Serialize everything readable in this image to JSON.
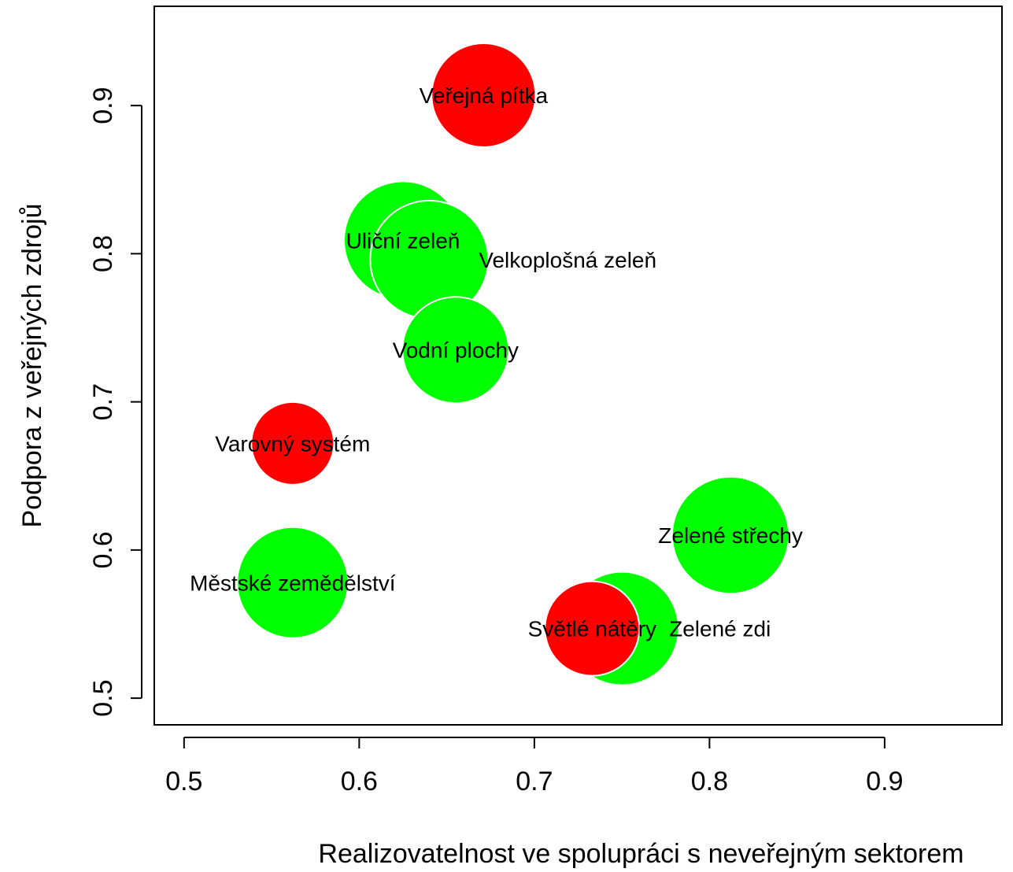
{
  "chart_data": {
    "type": "scatter",
    "xlabel": "Realizovatelnost ve spolupráci s neveřejným sektorem",
    "ylabel": "Podpora z veřejných zdrojů",
    "xlim": [
      0.483,
      0.967
    ],
    "ylim": [
      0.482,
      0.967
    ],
    "xticks": [
      0.5,
      0.6,
      0.7,
      0.8,
      0.9
    ],
    "yticks": [
      0.5,
      0.6,
      0.7,
      0.8,
      0.9
    ],
    "xtick_labels": [
      "0.5",
      "0.6",
      "0.7",
      "0.8",
      "0.9"
    ],
    "ytick_labels": [
      "0.5",
      "0.6",
      "0.7",
      "0.8",
      "0.9"
    ],
    "grid": false,
    "colors": {
      "green": "#00ff00",
      "red": "#ff0000"
    },
    "points": [
      {
        "label": "Veřejná pítka",
        "x": 0.671,
        "y": 0.907,
        "color": "red",
        "size": 0.88
      },
      {
        "label": "Uliční zeleň",
        "x": 0.625,
        "y": 0.809,
        "color": "green",
        "size": 1.0
      },
      {
        "label": "Velkoplošná zeleň",
        "x": 0.64,
        "y": 0.796,
        "color": "green",
        "size": 1.0
      },
      {
        "label": "Vodní plochy",
        "x": 0.655,
        "y": 0.735,
        "color": "green",
        "size": 0.9
      },
      {
        "label": "Varovný systém",
        "x": 0.562,
        "y": 0.672,
        "color": "red",
        "size": 0.7
      },
      {
        "label": "Zelené střechy",
        "x": 0.812,
        "y": 0.61,
        "color": "green",
        "size": 0.99
      },
      {
        "label": "Městské zemědělství",
        "x": 0.562,
        "y": 0.578,
        "color": "green",
        "size": 0.94
      },
      {
        "label": "Zelené zdi",
        "x": 0.75,
        "y": 0.547,
        "color": "green",
        "size": 0.96
      },
      {
        "label": "Světlé nátěry",
        "x": 0.733,
        "y": 0.547,
        "color": "red",
        "size": 0.8
      }
    ],
    "label_offsets": [
      0,
      0,
      1,
      0,
      0,
      0,
      0,
      1,
      0
    ]
  }
}
